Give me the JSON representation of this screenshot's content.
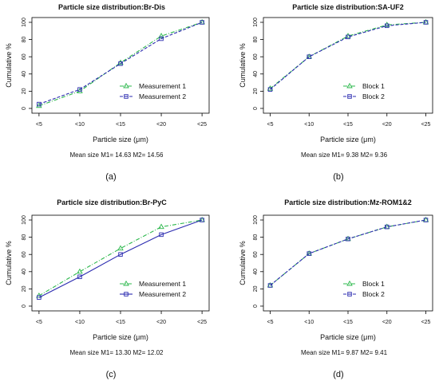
{
  "colors": {
    "series_green": "#2db84d",
    "series_blue": "#2b2bb0",
    "axis": "#000000",
    "text": "#111111"
  },
  "chart_data": [
    {
      "type": "line",
      "panel_label": "(a)",
      "title": "Particle size distribution:Br-Dis",
      "xlabel": "Particle size (μm)",
      "ylabel": "Cumulative %",
      "categories": [
        "<5",
        "<10",
        "<15",
        "<20",
        "<25"
      ],
      "ylim": [
        0,
        100
      ],
      "yticks": [
        0,
        20,
        40,
        60,
        80,
        100
      ],
      "legend_position": "bottom-right",
      "series": [
        {
          "name": "Measurement 1",
          "values": [
            3,
            20,
            53,
            84,
            100
          ],
          "color": "#2db84d",
          "marker": "triangle",
          "line": "dashdot"
        },
        {
          "name": "Measurement 2",
          "values": [
            5,
            22,
            52,
            81,
            100
          ],
          "color": "#2b2bb0",
          "marker": "square",
          "line": "dashed"
        }
      ],
      "caption": "Mean size M1= 14.63   M2= 14.56"
    },
    {
      "type": "line",
      "panel_label": "(b)",
      "title": "Particle size distribution:SA-UF2",
      "xlabel": "Particle size (μm)",
      "ylabel": "Cumulative %",
      "categories": [
        "<5",
        "<10",
        "<15",
        "<20",
        "<25"
      ],
      "ylim": [
        0,
        100
      ],
      "yticks": [
        0,
        20,
        40,
        60,
        80,
        100
      ],
      "legend_position": "bottom-right",
      "series": [
        {
          "name": "Block 1",
          "values": [
            23,
            60,
            84,
            97,
            100
          ],
          "color": "#2db84d",
          "marker": "triangle",
          "line": "dashdot"
        },
        {
          "name": "Block 2",
          "values": [
            22,
            60,
            83,
            96,
            100
          ],
          "color": "#2b2bb0",
          "marker": "square",
          "line": "dashed"
        }
      ],
      "caption": "Mean size M1= 9.38   M2= 9.36"
    },
    {
      "type": "line",
      "panel_label": "(c)",
      "title": "Particle size distribution:Br-PyC",
      "xlabel": "Particle size (μm)",
      "ylabel": "Cumulative %",
      "categories": [
        "<5",
        "<10",
        "<15",
        "<20",
        "<25"
      ],
      "ylim": [
        0,
        100
      ],
      "yticks": [
        0,
        20,
        40,
        60,
        80,
        100
      ],
      "legend_position": "bottom-right",
      "series": [
        {
          "name": "Measurement 1",
          "values": [
            12,
            40,
            67,
            92,
            100
          ],
          "color": "#2db84d",
          "marker": "triangle",
          "line": "dashdot"
        },
        {
          "name": "Measurement 2",
          "values": [
            10,
            34,
            60,
            83,
            100
          ],
          "color": "#2b2bb0",
          "marker": "square",
          "line": "solid"
        }
      ],
      "caption": "Mean size M1= 13.30   M2= 12.02"
    },
    {
      "type": "line",
      "panel_label": "(d)",
      "title": "Particle size distribution:Mz-ROM1&2",
      "xlabel": "Particle size (μm)",
      "ylabel": "Cumulative %",
      "categories": [
        "<5",
        "<10",
        "<15",
        "<20",
        "<25"
      ],
      "ylim": [
        0,
        100
      ],
      "yticks": [
        0,
        20,
        40,
        60,
        80,
        100
      ],
      "legend_position": "bottom-right",
      "series": [
        {
          "name": "Block 1",
          "values": [
            24,
            61,
            78,
            92,
            100
          ],
          "color": "#2db84d",
          "marker": "triangle",
          "line": "dashdot"
        },
        {
          "name": "Block 2",
          "values": [
            24,
            61,
            78,
            92,
            100
          ],
          "color": "#2b2bb0",
          "marker": "square",
          "line": "dashed"
        }
      ],
      "caption": "Mean size M1= 9.87   M2= 9.41"
    }
  ]
}
